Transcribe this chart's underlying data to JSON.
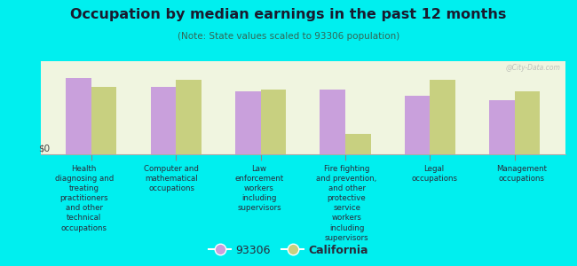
{
  "title": "Occupation by median earnings in the past 12 months",
  "subtitle": "(Note: State values scaled to 93306 population)",
  "background_color": "#00efef",
  "plot_bg_top": "#f0f5e0",
  "plot_bg_bottom": "#e0eecc",
  "categories": [
    "Health\ndiagnosing and\ntreating\npractitioners\nand other\ntechnical\noccupations",
    "Computer and\nmathematical\noccupations",
    "Law\nenforcement\nworkers\nincluding\nsupervisors",
    "Fire fighting\nand prevention,\nand other\nprotective\nservice\nworkers\nincluding\nsupervisors",
    "Legal\noccupations",
    "Management\noccupations"
  ],
  "values_93306": [
    0.82,
    0.72,
    0.68,
    0.7,
    0.63,
    0.58
  ],
  "values_california": [
    0.72,
    0.8,
    0.7,
    0.22,
    0.8,
    0.68
  ],
  "color_93306": "#c9a0dc",
  "color_california": "#c8d080",
  "ylabel": "$0",
  "legend_93306": "93306",
  "legend_california": "California",
  "bar_width": 0.3,
  "watermark": "@City-Data.com",
  "title_color": "#1a1a2e",
  "subtitle_color": "#336655",
  "label_color": "#2a2a3a"
}
